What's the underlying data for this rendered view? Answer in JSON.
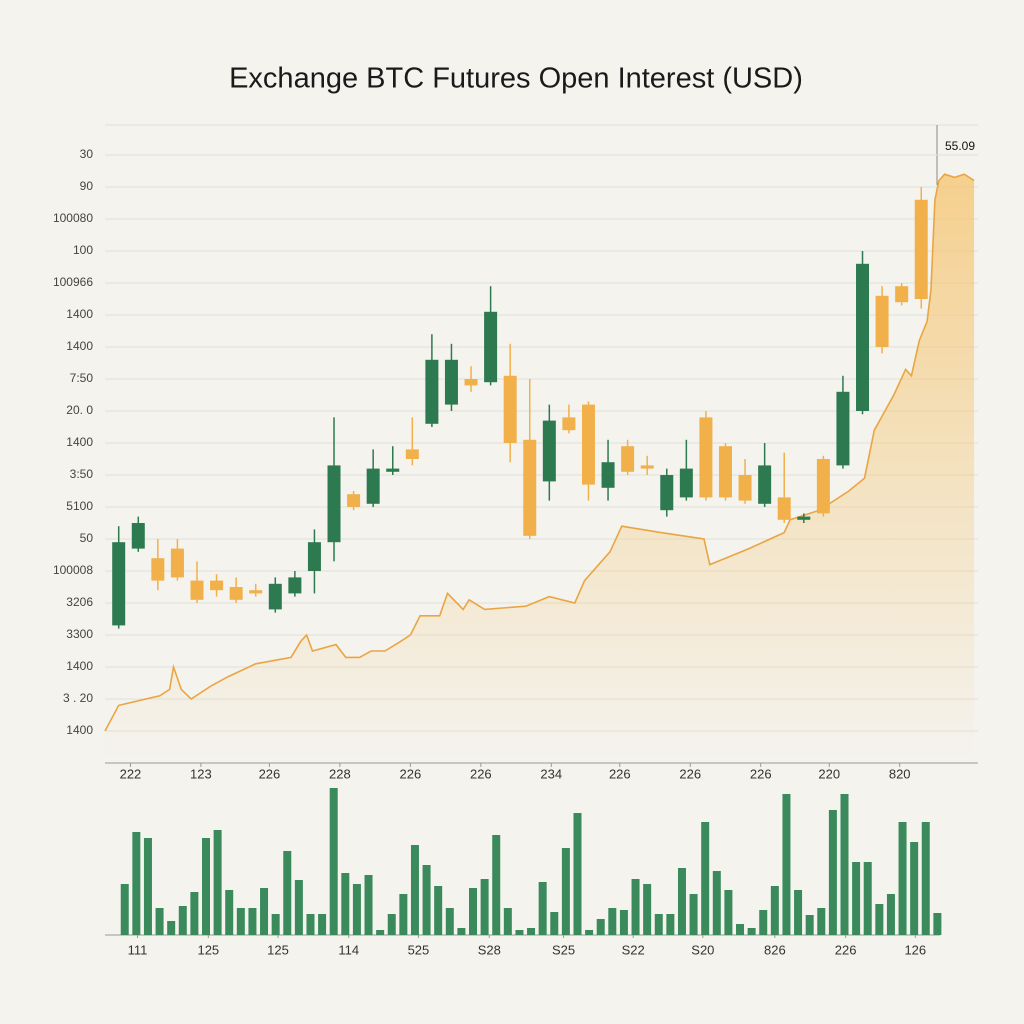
{
  "chart_data": [
    {
      "type": "candlestick",
      "title": "Exchange BTC Futures Open Interest (USD)",
      "annotation": "55.09",
      "up_color": "#2e7a50",
      "down_color": "#f2b04a",
      "open": [
        4.3,
        6.7,
        6.4,
        6.7,
        5.7,
        5.7,
        5.5,
        5.4,
        4.8,
        5.3,
        6.0,
        6.9,
        8.4,
        8.1,
        9.1,
        9.8,
        10.6,
        11.2,
        12.0,
        11.9,
        12.1,
        10.1,
        8.8,
        10.8,
        11.2,
        8.6,
        9.9,
        9.3,
        7.9,
        8.3,
        10.8,
        9.9,
        9.0,
        8.1,
        8.3,
        7.6,
        9.5,
        9.3,
        11.0,
        14.6,
        14.9,
        17.6
      ],
      "high": [
        7.4,
        7.7,
        7.0,
        7.0,
        6.3,
        5.9,
        5.8,
        5.6,
        5.8,
        6.0,
        7.3,
        10.8,
        8.5,
        9.8,
        9.9,
        10.8,
        13.4,
        13.1,
        12.4,
        14.9,
        13.1,
        12.0,
        11.2,
        11.2,
        11.3,
        10.1,
        10.1,
        9.6,
        9.2,
        10.1,
        11.0,
        10.0,
        9.5,
        10.0,
        9.7,
        7.8,
        9.6,
        12.1,
        16.0,
        14.9,
        15.0,
        18.0
      ],
      "low": [
        4.2,
        6.6,
        5.4,
        5.7,
        5.0,
        5.2,
        5.0,
        5.2,
        4.7,
        5.2,
        5.3,
        6.3,
        7.9,
        8.0,
        9.0,
        9.3,
        10.5,
        11.0,
        11.6,
        11.8,
        9.4,
        7.0,
        8.2,
        10.3,
        8.2,
        8.2,
        9.0,
        9.0,
        7.7,
        8.2,
        8.2,
        8.2,
        8.1,
        8.0,
        7.5,
        7.5,
        7.7,
        9.2,
        10.9,
        12.8,
        14.3,
        14.2
      ],
      "close": [
        6.9,
        7.5,
        5.7,
        5.8,
        5.1,
        5.4,
        5.1,
        5.3,
        5.6,
        5.8,
        6.9,
        9.3,
        8.0,
        9.2,
        9.2,
        9.5,
        12.6,
        12.6,
        11.8,
        14.1,
        10.0,
        7.1,
        10.7,
        10.4,
        8.7,
        9.4,
        9.1,
        9.2,
        9.0,
        9.2,
        8.3,
        8.3,
        8.2,
        9.3,
        7.6,
        7.7,
        7.8,
        11.6,
        15.6,
        13.0,
        14.4,
        14.5
      ],
      "series": [
        {
          "type": "area",
          "color": "#eaa543",
          "x": [
            -0.7,
            0.0,
            2.1,
            2.6,
            2.8,
            3.2,
            3.7,
            4.7,
            5.6,
            7.0,
            8.8,
            9.3,
            9.6,
            9.9,
            11.1,
            11.6,
            12.3,
            12.9,
            13.6,
            14.4,
            14.9,
            15.4,
            16.4,
            16.8,
            17.6,
            17.9,
            18.7,
            20.8,
            22.0,
            23.3,
            23.8,
            25.1,
            25.7,
            27.7,
            29.9,
            30.2,
            32.2,
            34.0,
            34.3,
            35.8,
            37.3,
            38.1,
            38.6,
            39.6,
            40.2,
            40.5,
            40.9,
            41.3,
            41.5,
            41.7,
            41.9,
            42.2,
            42.7,
            43.2,
            43.7
          ],
          "values": [
            1.0,
            1.8,
            2.1,
            2.3,
            3.0,
            2.3,
            2.0,
            2.4,
            2.7,
            3.1,
            3.3,
            3.8,
            4.0,
            3.5,
            3.7,
            3.3,
            3.3,
            3.5,
            3.5,
            3.8,
            4.0,
            4.6,
            4.6,
            5.3,
            4.8,
            5.1,
            4.8,
            4.9,
            5.2,
            5.0,
            5.7,
            6.6,
            7.4,
            7.2,
            7.0,
            6.2,
            6.7,
            7.2,
            7.6,
            7.9,
            8.5,
            8.9,
            10.4,
            11.5,
            12.3,
            12.1,
            13.2,
            13.8,
            14.8,
            17.6,
            18.2,
            18.4,
            18.3,
            18.4,
            18.2
          ]
        }
      ],
      "xlim": [
        -0.7,
        43.9
      ],
      "xticks": [
        {
          "value": 0.6,
          "label": "222"
        },
        {
          "value": 4.2,
          "label": "123"
        },
        {
          "value": 7.7,
          "label": "226"
        },
        {
          "value": 11.3,
          "label": "228"
        },
        {
          "value": 14.9,
          "label": "226"
        },
        {
          "value": 18.5,
          "label": "226"
        },
        {
          "value": 22.1,
          "label": "234"
        },
        {
          "value": 25.6,
          "label": "226"
        },
        {
          "value": 29.2,
          "label": "226"
        },
        {
          "value": 32.8,
          "label": "226"
        },
        {
          "value": 36.3,
          "label": "220"
        },
        {
          "value": 39.9,
          "label": "820"
        }
      ],
      "ylim": [
        0,
        20
      ],
      "yticks": [
        {
          "value": 19,
          "label": "30"
        },
        {
          "value": 18,
          "label": "90"
        },
        {
          "value": 17,
          "label": "100080"
        },
        {
          "value": 16,
          "label": "100"
        },
        {
          "value": 15,
          "label": "100966"
        },
        {
          "value": 14,
          "label": "1400"
        },
        {
          "value": 13,
          "label": "1400"
        },
        {
          "value": 12,
          "label": "7:50"
        },
        {
          "value": 11,
          "label": "20. 0"
        },
        {
          "value": 10,
          "label": "1400"
        },
        {
          "value": 9,
          "label": "3:50"
        },
        {
          "value": 8,
          "label": "5100"
        },
        {
          "value": 7,
          "label": "50"
        },
        {
          "value": 6,
          "label": "100008"
        },
        {
          "value": 5,
          "label": "3206"
        },
        {
          "value": 4,
          "label": "3300"
        },
        {
          "value": 3,
          "label": "1400"
        },
        {
          "value": 2,
          "label": "3 . 20"
        },
        {
          "value": 1,
          "label": "1400"
        }
      ],
      "grid": true
    },
    {
      "type": "bar",
      "color": "#3a8a5c",
      "values": [
        5.1,
        10.3,
        9.7,
        2.7,
        1.4,
        2.9,
        4.3,
        9.7,
        10.5,
        4.5,
        2.7,
        2.7,
        4.7,
        2.1,
        8.4,
        5.5,
        2.1,
        2.1,
        14.7,
        6.2,
        5.1,
        6.0,
        0.5,
        2.1,
        4.1,
        9.0,
        7.0,
        4.9,
        2.7,
        0.7,
        4.7,
        5.6,
        10.0,
        2.7,
        0.5,
        0.7,
        5.3,
        2.3,
        8.7,
        12.2,
        0.5,
        1.6,
        2.7,
        2.5,
        5.6,
        5.1,
        2.1,
        2.1,
        6.7,
        4.1,
        11.3,
        6.4,
        4.5,
        1.1,
        0.7,
        2.5,
        4.9,
        14.1,
        4.5,
        2.0,
        2.7,
        12.5,
        14.1,
        7.3,
        7.3,
        3.1,
        4.1,
        11.3,
        9.3,
        11.3,
        2.2
      ],
      "xlim": [
        -1.7,
        73.5
      ],
      "xticks": [
        {
          "value": 1.1,
          "label": "111"
        },
        {
          "value": 7.2,
          "label": "125"
        },
        {
          "value": 13.2,
          "label": "125"
        },
        {
          "value": 19.3,
          "label": "114"
        },
        {
          "value": 25.3,
          "label": "525"
        },
        {
          "value": 31.4,
          "label": "S28"
        },
        {
          "value": 37.8,
          "label": "S25"
        },
        {
          "value": 43.8,
          "label": "S22"
        },
        {
          "value": 49.8,
          "label": "S20"
        },
        {
          "value": 56.0,
          "label": "826"
        },
        {
          "value": 62.1,
          "label": "226"
        },
        {
          "value": 68.1,
          "label": "126"
        }
      ],
      "ylim": [
        0,
        15
      ]
    }
  ]
}
